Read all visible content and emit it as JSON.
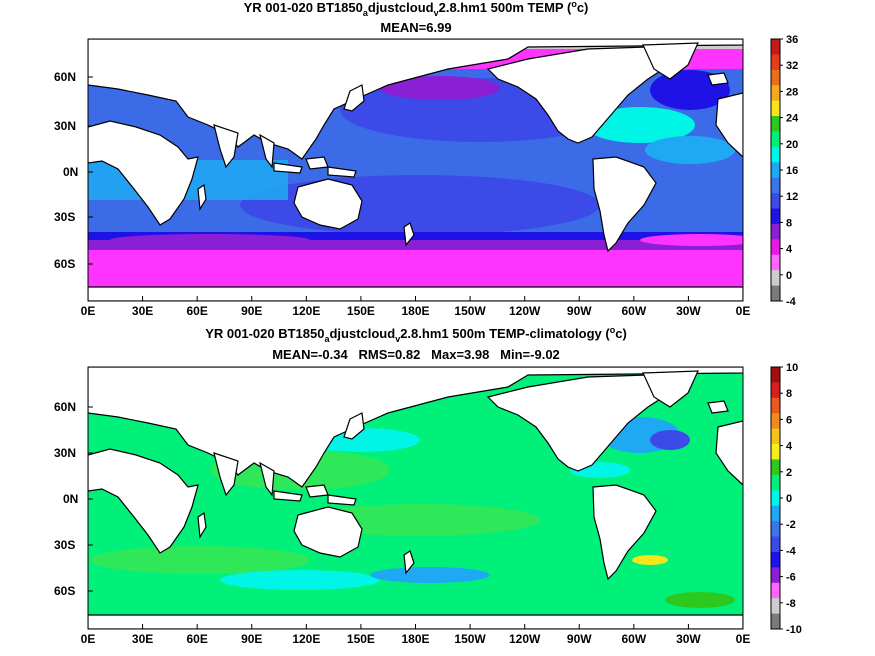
{
  "figure": {
    "panels": [
      {
        "id": "top",
        "title_line1_pre": "YR 001-020 BT1850",
        "title_sub1": "a",
        "title_mid": "djustcloud",
        "title_sub2": "v",
        "title_post": "2.8.hm1 500m TEMP (",
        "title_sup": "o",
        "title_end": "c)",
        "title_line2": "MEAN=6.99",
        "colorbar": {
          "labels": [
            "36",
            "32",
            "28",
            "24",
            "20",
            "16",
            "12",
            "8",
            "4",
            "0",
            "-4"
          ],
          "colors": [
            "#c41a1a",
            "#e63b1e",
            "#e8701a",
            "#f2a91c",
            "#f5e61b",
            "#2ec91e",
            "#00f07a",
            "#00f5e6",
            "#1fa9f2",
            "#3c75e8",
            "#3c4be8",
            "#1f12e6",
            "#8a1fd6",
            "#e61ae6",
            "#ff66ff",
            "#cccccc",
            "#7a7a7a"
          ]
        }
      },
      {
        "id": "bottom",
        "title_line1_pre": "YR 001-020 BT1850",
        "title_sub1": "a",
        "title_mid": "djustcloud",
        "title_sub2": "v",
        "title_post": "2.8.hm1 500m TEMP-climatology (",
        "title_sup": "o",
        "title_end": "c)",
        "title_line2": "MEAN=-0.34   RMS=0.82   Max=3.98   Min=-9.02",
        "colorbar": {
          "labels": [
            "10",
            "8",
            "6",
            "4",
            "2",
            "0",
            "-2",
            "-4",
            "-6",
            "-8",
            "-10"
          ],
          "colors": [
            "#a01010",
            "#d62020",
            "#e85a1e",
            "#f08c1c",
            "#f5c41b",
            "#f5f01b",
            "#2ec91e",
            "#00f07a",
            "#00f5e6",
            "#1fa9f2",
            "#3c75e8",
            "#3c4be8",
            "#1f12e6",
            "#8a1fd6",
            "#ff66ff",
            "#cccccc",
            "#7a7a7a"
          ]
        }
      }
    ],
    "lat_labels": [
      "60N",
      "30N",
      "0N",
      "30S",
      "60S"
    ],
    "lon_labels": [
      "0E",
      "30E",
      "60E",
      "90E",
      "120E",
      "150E",
      "180E",
      "150W",
      "120W",
      "90W",
      "60W",
      "30W",
      "0E"
    ],
    "ocean_colors": {
      "top_main": "#3c6be8",
      "top_deep": "#3c4be8",
      "top_light": "#1fa9f2",
      "top_cyan": "#00f5e6",
      "top_purple": "#8a1fd6",
      "top_magenta": "#ff33ff",
      "top_blue": "#1f12e6",
      "bottom_main": "#00f07a",
      "bottom_light": "#2ee85a",
      "bottom_cyan": "#00f5e6",
      "bottom_blue": "#1fa9f2"
    }
  }
}
